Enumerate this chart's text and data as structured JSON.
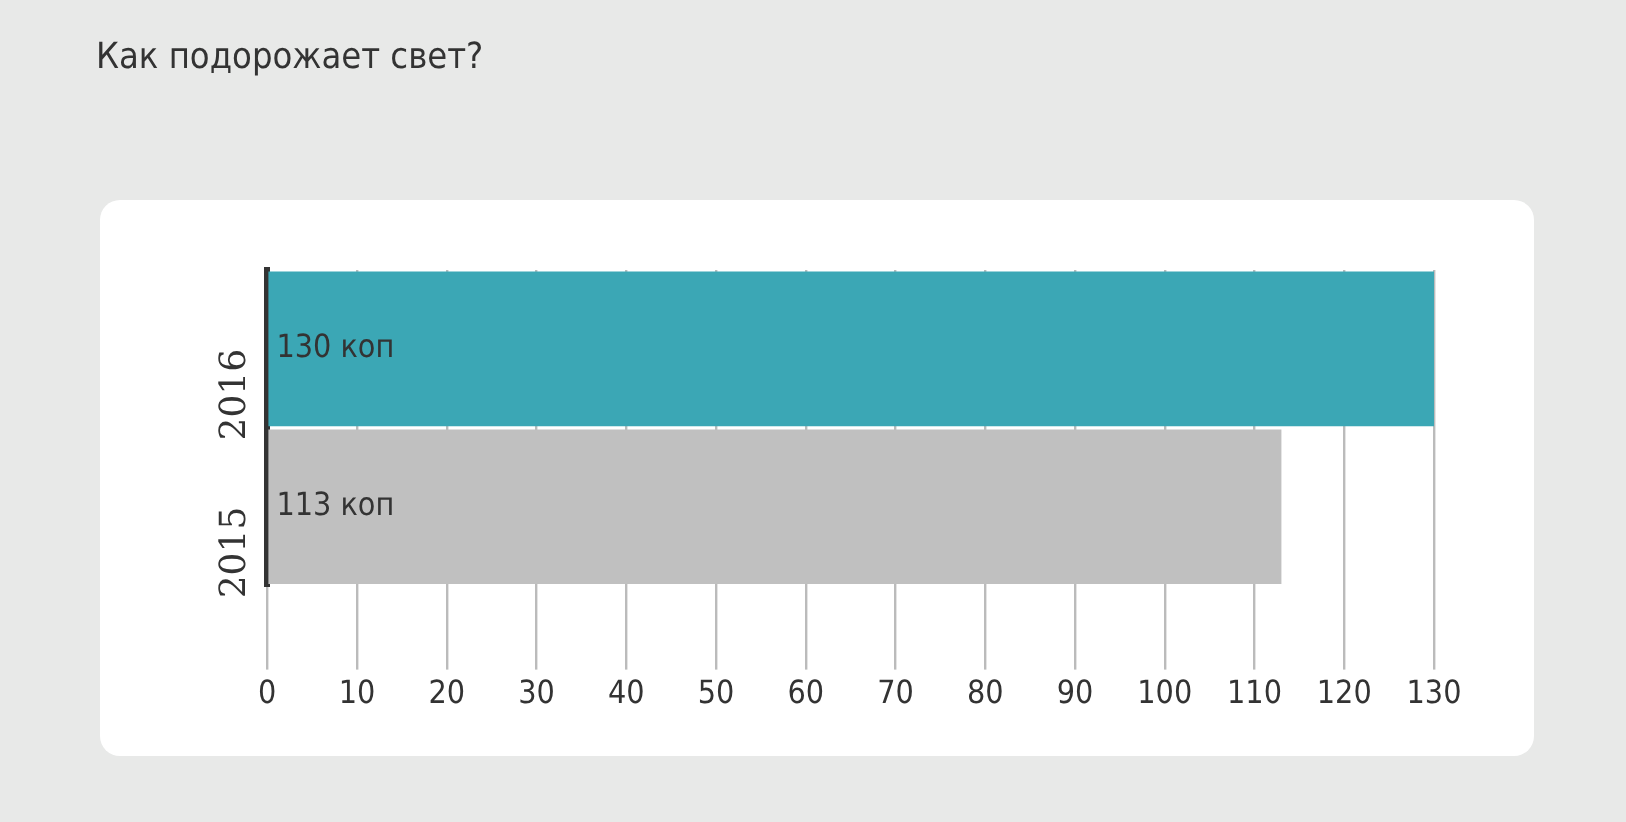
{
  "chart_data": {
    "type": "bar",
    "orientation": "horizontal",
    "title": "Как подорожает свет?",
    "categories": [
      "2016",
      "2015"
    ],
    "values": [
      130,
      113
    ],
    "colors": [
      "#3ba7b5",
      "#c0c0c0"
    ],
    "value_labels": [
      "130 коп",
      "113 коп"
    ],
    "xlim": [
      0,
      130
    ],
    "xticks": [
      0,
      10,
      20,
      30,
      40,
      50,
      60,
      70,
      80,
      90,
      100,
      110,
      120,
      130
    ],
    "grid": "x",
    "legend": false
  }
}
